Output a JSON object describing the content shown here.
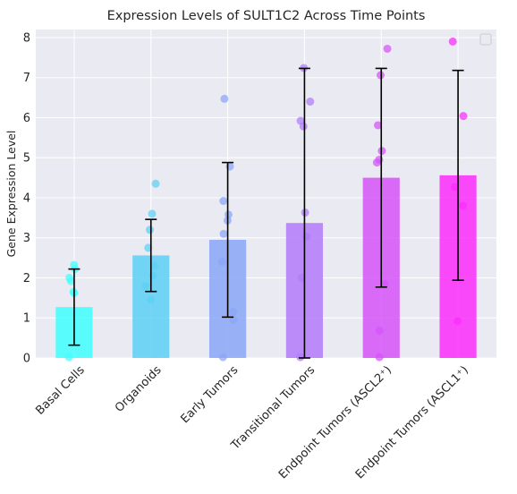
{
  "chart_data": {
    "type": "bar",
    "title": "Expression Levels of SULT1C2 Across Time Points",
    "xlabel": "",
    "ylabel": "Gene Expression Level",
    "ylim": [
      0,
      8.2
    ],
    "yticks": [
      0,
      1,
      2,
      3,
      4,
      5,
      6,
      7,
      8
    ],
    "grid": true,
    "legend": "top-right (empty)",
    "categories": [
      "Basal Cells",
      "Organoids",
      "Early Tumors",
      "Transitional Tumors",
      "Endpoint Tumors (ASCL2⁺)",
      "Endpoint Tumors (ASCL1⁺)"
    ],
    "values": [
      1.27,
      2.56,
      2.95,
      3.37,
      4.5,
      4.56
    ],
    "errors": [
      0.95,
      0.9,
      1.93,
      3.86,
      2.73,
      2.62
    ],
    "colors": [
      "#40ffff",
      "#5dd0f5",
      "#8aa6f7",
      "#b27afa",
      "#d653f9",
      "#fb2bfc"
    ],
    "points": [
      [
        2.32,
        2.22,
        2.0,
        1.92,
        1.65,
        1.62,
        0.02
      ],
      [
        4.35,
        3.6,
        3.2,
        2.75,
        2.3,
        2.05,
        1.8,
        1.45
      ],
      [
        6.47,
        4.78,
        3.92,
        3.58,
        3.43,
        3.1,
        2.4,
        1.15,
        0.95,
        0.02
      ],
      [
        7.24,
        6.4,
        5.92,
        5.78,
        3.63,
        3.03,
        2.0,
        0.02
      ],
      [
        7.72,
        7.06,
        5.81,
        5.17,
        4.95,
        4.88,
        1.85,
        0.68,
        0.02
      ],
      [
        7.9,
        6.04,
        4.27,
        3.8,
        0.92
      ]
    ]
  }
}
